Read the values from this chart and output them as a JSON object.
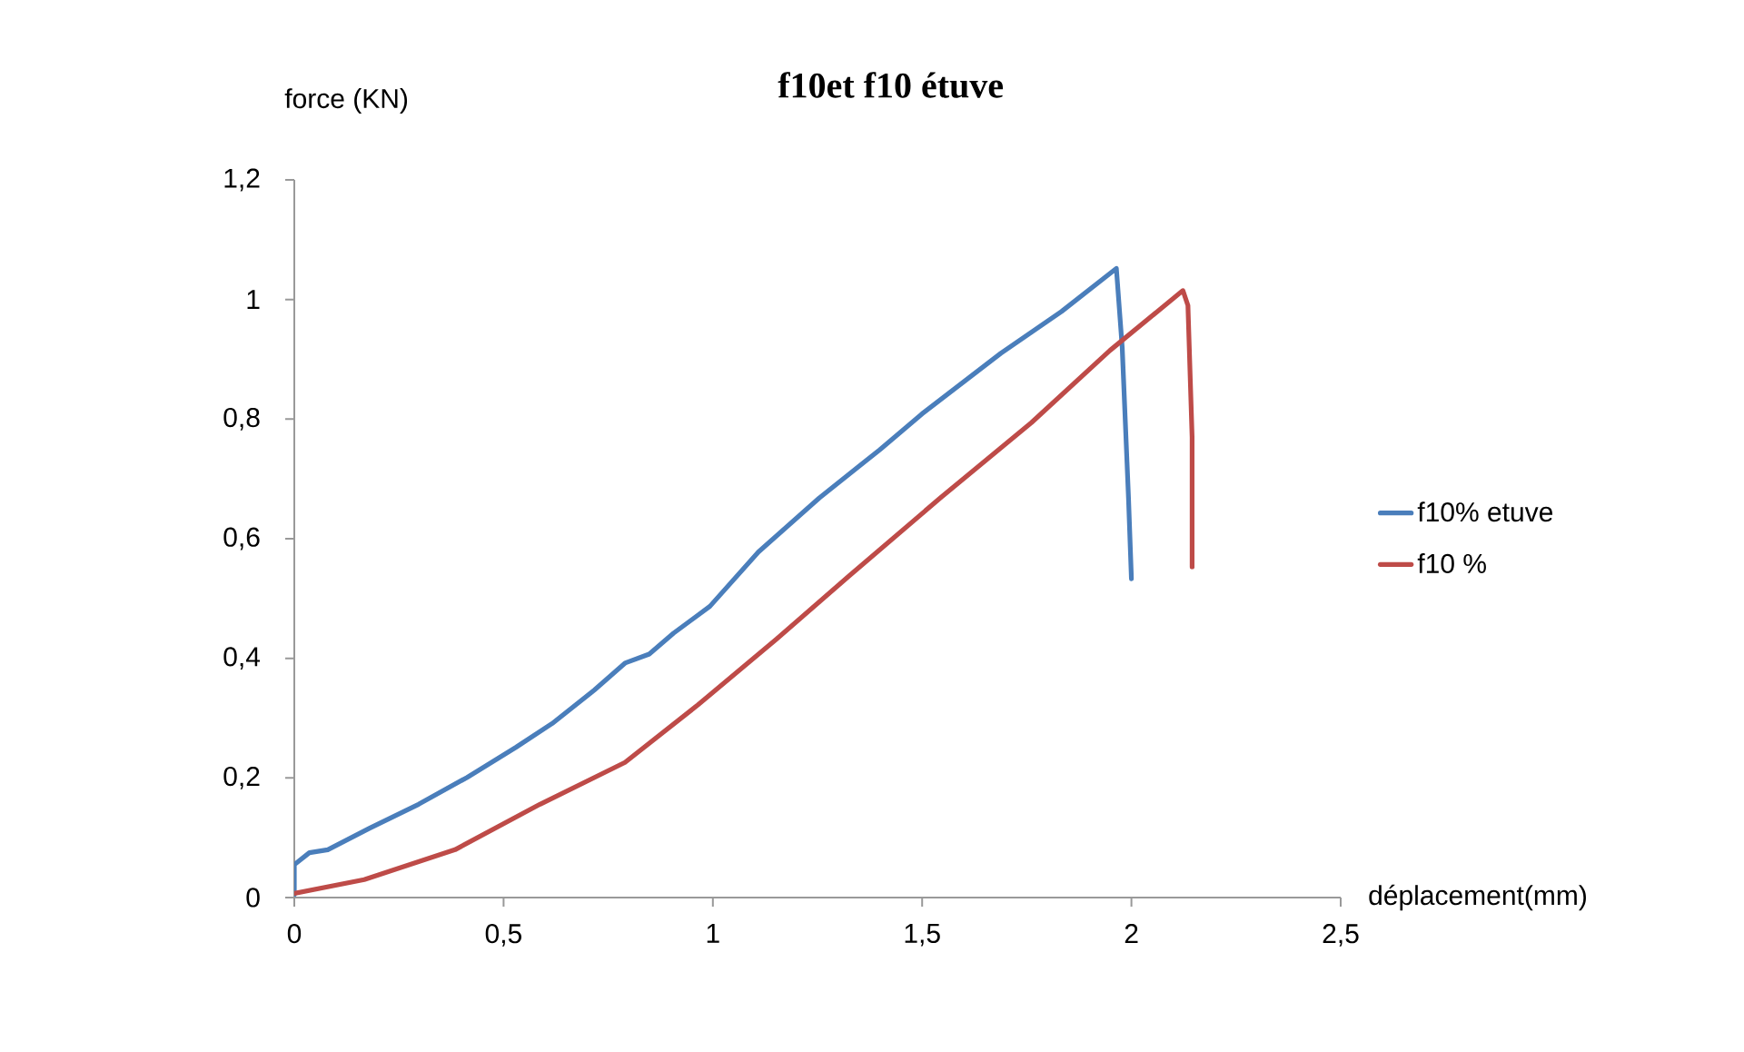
{
  "chart_data": {
    "type": "line",
    "title": "f10et f10 étuve",
    "xlabel": "déplacement(mm)",
    "ylabel": "force (KN)",
    "xlim": [
      0,
      2.5
    ],
    "ylim": [
      0,
      1.2
    ],
    "xticks": [
      0,
      {
        "value": 0.5,
        "label": "0,5"
      },
      1,
      {
        "value": 1.5,
        "label": "1,5"
      },
      2,
      {
        "value": 2.5,
        "label": "2,5"
      }
    ],
    "yticks": [
      0,
      {
        "value": 0.2,
        "label": "0,2"
      },
      {
        "value": 0.4,
        "label": "0,4"
      },
      {
        "value": 0.6,
        "label": "0,6"
      },
      {
        "value": 0.8,
        "label": "0,8"
      },
      1,
      {
        "value": 1.2,
        "label": "1,2"
      }
    ],
    "legend": "right",
    "marker": "none",
    "line_style": "solid",
    "series": [
      {
        "name": "f10% etuve",
        "color": "#4a7ebb",
        "x": [
          0,
          0,
          0.036,
          0.08,
          0.18,
          0.297,
          0.413,
          0.529,
          0.616,
          0.717,
          0.79,
          0.848,
          0.906,
          0.993,
          1.109,
          1.254,
          1.399,
          1.5,
          1.688,
          1.833,
          1.964,
          1.978,
          1.993,
          2.0
        ],
        "values": [
          0.005,
          0.055,
          0.075,
          0.08,
          0.116,
          0.156,
          0.201,
          0.251,
          0.291,
          0.347,
          0.392,
          0.407,
          0.442,
          0.487,
          0.578,
          0.668,
          0.749,
          0.809,
          0.91,
          0.98,
          1.052,
          0.92,
          0.668,
          0.533
        ]
      },
      {
        "name": "f10 %",
        "color": "#be4b48",
        "x": [
          0,
          0.167,
          0.384,
          0.587,
          0.79,
          0.964,
          1.152,
          1.326,
          1.543,
          1.761,
          1.949,
          2.123,
          2.135,
          2.145,
          2.145
        ],
        "values": [
          0.007,
          0.03,
          0.08,
          0.156,
          0.226,
          0.322,
          0.432,
          0.538,
          0.668,
          0.794,
          0.915,
          1.015,
          0.99,
          0.769,
          0.553
        ]
      }
    ]
  }
}
